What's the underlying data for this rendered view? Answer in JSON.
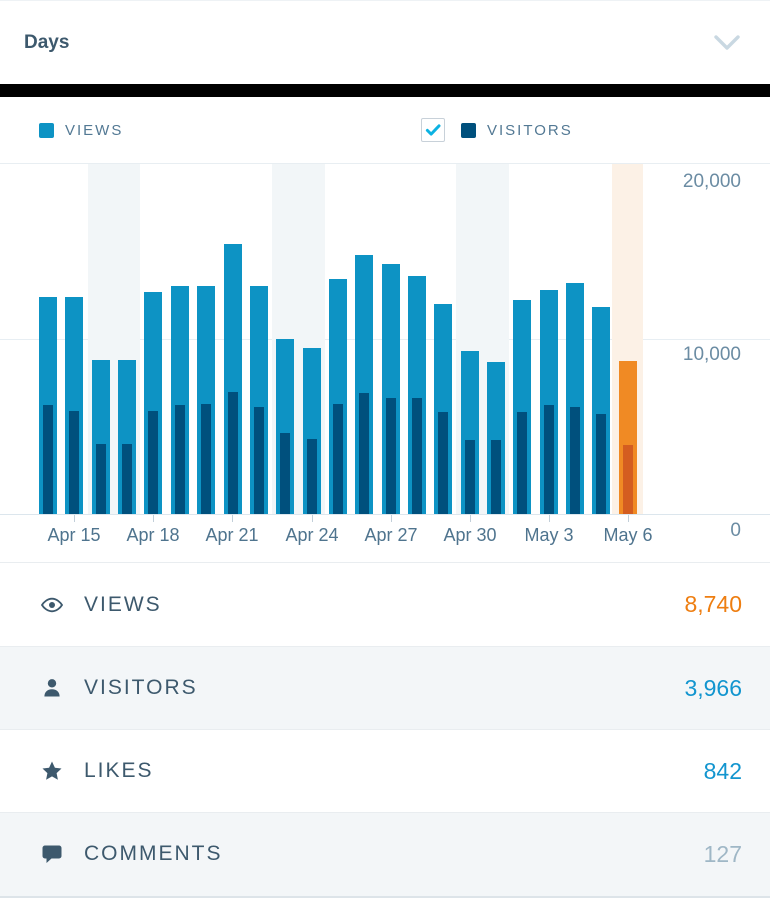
{
  "header": {
    "title": "Days",
    "chevron_icon": "chevron-down-icon"
  },
  "legend": {
    "views_label": "VIEWS",
    "visitors_label": "VISITORS",
    "views_color": "#0d93c4",
    "visitors_color": "#00507d",
    "visitors_checkbox_checked": true,
    "checkbox_check_color": "#0cb2e2"
  },
  "chart_data": {
    "type": "bar",
    "unit": "day",
    "x_dates": [
      "Apr 14",
      "Apr 15",
      "Apr 16",
      "Apr 17",
      "Apr 18",
      "Apr 19",
      "Apr 20",
      "Apr 21",
      "Apr 22",
      "Apr 23",
      "Apr 24",
      "Apr 25",
      "Apr 26",
      "Apr 27",
      "Apr 28",
      "Apr 29",
      "Apr 30",
      "May 1",
      "May 2",
      "May 3",
      "May 4",
      "May 5",
      "May 6"
    ],
    "x_tick_labels": [
      "Apr 15",
      "Apr 18",
      "Apr 21",
      "Apr 24",
      "Apr 27",
      "Apr 30",
      "May 3",
      "May 6"
    ],
    "x_tick_indices": [
      1,
      4,
      7,
      10,
      13,
      16,
      19,
      22
    ],
    "y_tick_labels": [
      "20,000",
      "10,000",
      "0"
    ],
    "ylim": [
      0,
      20000
    ],
    "grid": true,
    "legend_position": "top",
    "series": [
      {
        "name": "Views",
        "values": [
          12400,
          12400,
          8800,
          8800,
          12700,
          13000,
          13000,
          15400,
          13000,
          10000,
          9500,
          13400,
          14800,
          14300,
          13600,
          12000,
          9300,
          8700,
          12200,
          12800,
          13200,
          11800,
          8740
        ]
      },
      {
        "name": "Visitors",
        "values": [
          6200,
          5900,
          4000,
          4000,
          5900,
          6200,
          6300,
          7000,
          6100,
          4600,
          4300,
          6300,
          6900,
          6600,
          6600,
          5800,
          4200,
          4200,
          5800,
          6200,
          6100,
          5700,
          3966
        ]
      }
    ],
    "weekend_indices": [
      2,
      3,
      9,
      10,
      16,
      17
    ],
    "highlighted_index": 22,
    "highlighted_date": "May 6",
    "colors": {
      "views": "#0d93c4",
      "visitors": "#00507d",
      "views_highlight": "#f08a24",
      "visitors_highlight": "#d45d20",
      "highlight_bg": "#fcf1e6",
      "weekend_bg": "#f2f6f8"
    }
  },
  "summary": {
    "rows": [
      {
        "id": "views",
        "icon": "eye-icon",
        "label": "VIEWS",
        "value": "8,740",
        "value_color": "#ee7e11"
      },
      {
        "id": "visitors",
        "icon": "person-icon",
        "label": "VISITORS",
        "value": "3,966",
        "value_color": "#1295cf"
      },
      {
        "id": "likes",
        "icon": "star-icon",
        "label": "LIKES",
        "value": "842",
        "value_color": "#1295cf"
      },
      {
        "id": "comments",
        "icon": "comment-icon",
        "label": "COMMENTS",
        "value": "127",
        "value_color": "#9fb7c6"
      }
    ]
  }
}
